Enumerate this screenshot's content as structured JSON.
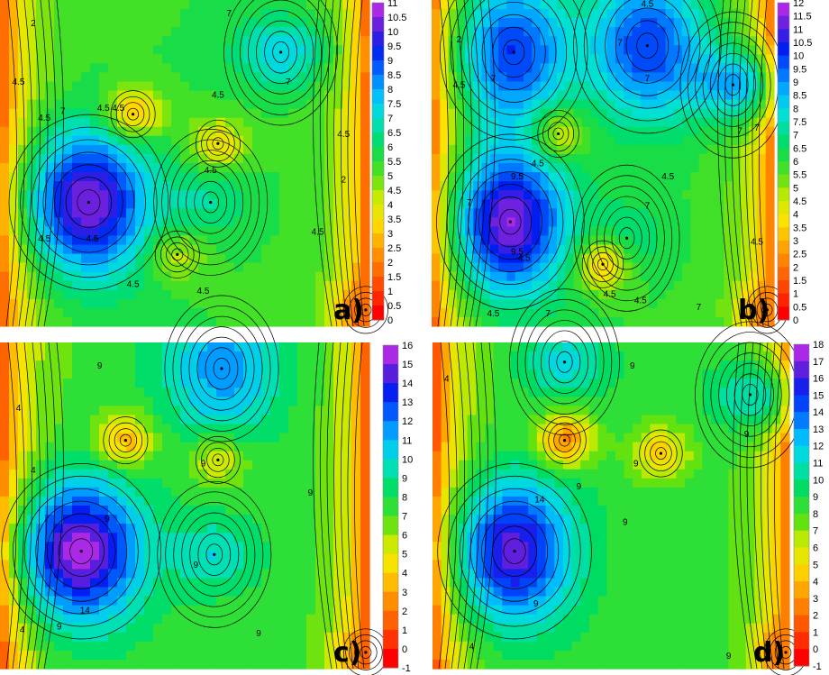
{
  "chart_data": [
    {
      "type": "heatmap",
      "panel_label": "a)",
      "colorbar": {
        "min": 0,
        "max": 11,
        "step": 0.5,
        "ticks": [
          "11",
          "10.5",
          "10",
          "9.5",
          "9",
          "8.5",
          "8",
          "7.5",
          "7",
          "6.5",
          "6",
          "5.5",
          "5",
          "4.5",
          "4",
          "3.5",
          "3",
          "2.5",
          "2",
          "1.5",
          "1",
          "0.5",
          "0"
        ]
      },
      "contour_labels": [
        "2",
        "7",
        "7",
        "4.5",
        "4.5",
        "4.5",
        "4.5",
        "4.5",
        "4.5",
        "4.5",
        "4.5",
        "7",
        "4.5",
        "2",
        "4.5",
        "4.5",
        "4.5"
      ],
      "features": [
        {
          "kind": "max",
          "value": 10.5
        },
        {
          "kind": "max",
          "value": 7.5
        },
        {
          "kind": "max",
          "value": 6.5
        },
        {
          "kind": "min",
          "value": 2.5
        },
        {
          "kind": "min",
          "value": 3.5
        },
        {
          "kind": "min",
          "value": 1.5
        },
        {
          "kind": "min",
          "value": 4
        }
      ]
    },
    {
      "type": "heatmap",
      "panel_label": "b)",
      "colorbar": {
        "min": 0,
        "max": 12,
        "step": 0.5,
        "ticks": [
          "12",
          "11.5",
          "11",
          "10.5",
          "10",
          "9.5",
          "9",
          "8.5",
          "8",
          "7.5",
          "7",
          "6.5",
          "6",
          "5.5",
          "5",
          "4.5",
          "4",
          "3.5",
          "3",
          "2.5",
          "2",
          "1.5",
          "1",
          "0.5",
          "0"
        ]
      },
      "contour_labels": [
        "4.5",
        "2",
        "4.5",
        "7",
        "7",
        "7",
        "7",
        "4.5",
        "7",
        "4.5",
        "9.5",
        "4.5",
        "7",
        "7",
        "9.5",
        "4.5",
        "7",
        "7",
        "4.5",
        "4.5",
        "4.5"
      ],
      "features": [
        {
          "kind": "max",
          "value": 11.5
        },
        {
          "kind": "max",
          "value": 10
        },
        {
          "kind": "max",
          "value": 10
        },
        {
          "kind": "max",
          "value": 8.5
        },
        {
          "kind": "max",
          "value": 7
        },
        {
          "kind": "min",
          "value": 2
        },
        {
          "kind": "min",
          "value": 3.5
        },
        {
          "kind": "min",
          "value": 3
        }
      ]
    },
    {
      "type": "heatmap",
      "panel_label": "c)",
      "colorbar": {
        "min": -1,
        "max": 16,
        "step": 1,
        "ticks": [
          "16",
          "15",
          "14",
          "13",
          "12",
          "11",
          "10",
          "9",
          "8",
          "7",
          "6",
          "5",
          "4",
          "3",
          "2",
          "1",
          "0",
          "-1"
        ]
      },
      "contour_labels": [
        "4",
        "9",
        "9",
        "9",
        "4",
        "9",
        "14",
        "9",
        "9",
        "4",
        "9"
      ],
      "features": [
        {
          "kind": "max",
          "value": 15.5
        },
        {
          "kind": "max",
          "value": 11.5
        },
        {
          "kind": "max",
          "value": 10
        },
        {
          "kind": "min",
          "value": 3
        },
        {
          "kind": "min",
          "value": 4.5
        },
        {
          "kind": "min",
          "value": 2
        }
      ]
    },
    {
      "type": "heatmap",
      "panel_label": "d)",
      "colorbar": {
        "min": -1,
        "max": 18,
        "step": 1,
        "ticks": [
          "18",
          "17",
          "16",
          "15",
          "14",
          "13",
          "12",
          "11",
          "10",
          "9",
          "8",
          "7",
          "6",
          "5",
          "4",
          "3",
          "2",
          "1",
          "0",
          "-1"
        ]
      },
      "contour_labels": [
        "4",
        "9",
        "9",
        "9",
        "9",
        "9",
        "14",
        "9",
        "4",
        "9"
      ],
      "features": [
        {
          "kind": "max",
          "value": 16.5
        },
        {
          "kind": "max",
          "value": 11.5
        },
        {
          "kind": "max",
          "value": 11
        },
        {
          "kind": "min",
          "value": 2.5
        },
        {
          "kind": "min",
          "value": 4.5
        },
        {
          "kind": "min",
          "value": 2
        }
      ]
    }
  ]
}
